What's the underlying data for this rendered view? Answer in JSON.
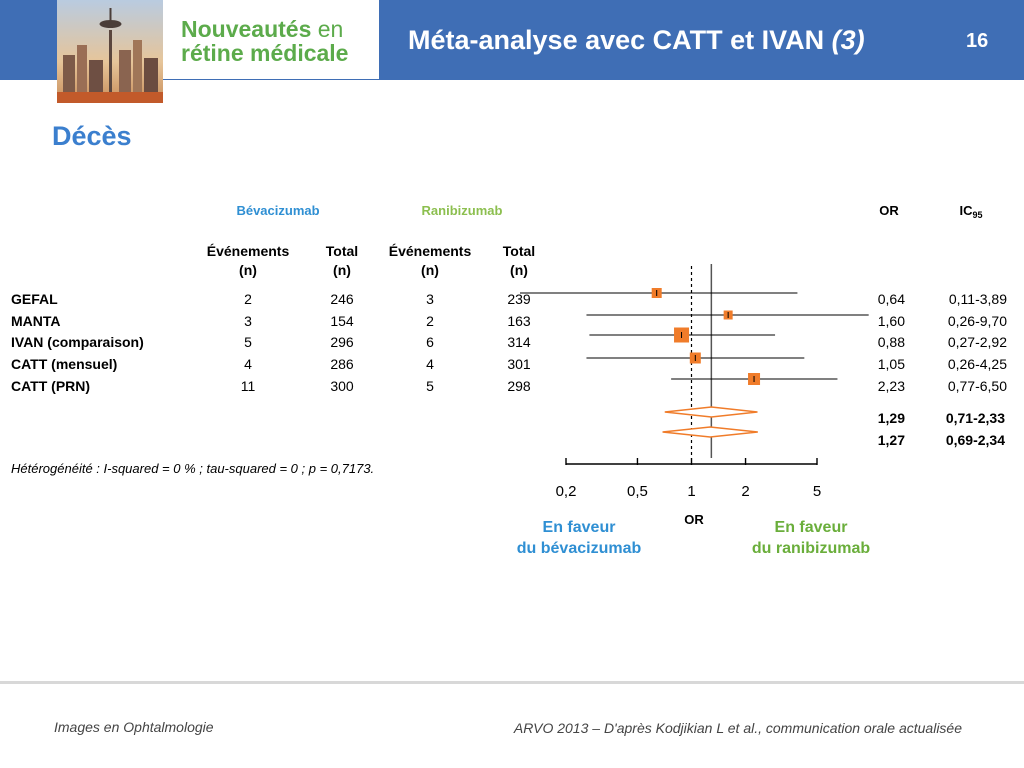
{
  "header": {
    "brand_line1": "Nouveautés",
    "brand_line1_suffix": "en",
    "brand_line2": "rétine médicale",
    "title": "Méta-analyse avec CATT et IVAN ",
    "title_italic": "(3)",
    "slide_number": "16"
  },
  "section_title": "Décès",
  "table": {
    "group_bev": "Bévacizumab",
    "group_ran": "Ranibizumab",
    "col_or": "OR",
    "col_ic": "IC",
    "col_ic_sub": "95",
    "col_events": "Événements",
    "col_total": "Total",
    "col_n": "(n)",
    "rows": [
      {
        "study": "GEFAL",
        "bev_events": "2",
        "bev_total": "246",
        "ran_events": "3",
        "ran_total": "239",
        "or": "0,64",
        "ic": "0,11-3,89"
      },
      {
        "study": "MANTA",
        "bev_events": "3",
        "bev_total": "154",
        "ran_events": "2",
        "ran_total": "163",
        "or": "1,60",
        "ic": "0,26-9,70"
      },
      {
        "study": "IVAN (comparaison)",
        "bev_events": "5",
        "bev_total": "296",
        "ran_events": "6",
        "ran_total": "314",
        "or": "0,88",
        "ic": "0,27-2,92"
      },
      {
        "study": "CATT (mensuel)",
        "bev_events": "4",
        "bev_total": "286",
        "ran_events": "4",
        "ran_total": "301",
        "or": "1,05",
        "ic": "0,26-4,25"
      },
      {
        "study": "CATT (PRN)",
        "bev_events": "11",
        "bev_total": "300",
        "ran_events": "5",
        "ran_total": "298",
        "or": "2,23",
        "ic": "0,77-6,50"
      }
    ],
    "pooled": [
      {
        "or": "1,29",
        "ic": "0,71-2,33"
      },
      {
        "or": "1,27",
        "ic": "0,69-2,34"
      }
    ],
    "heterogeneity": "Hétérogénéité : I-squared = 0 % ; tau-squared = 0 ; p = 0,7173."
  },
  "chart_data": {
    "type": "forest",
    "x_scale": "log",
    "xlabel": "OR",
    "xlim": [
      0.2,
      5
    ],
    "ticks": [
      {
        "value": 0.2,
        "label": "0,2"
      },
      {
        "value": 0.5,
        "label": "0,5"
      },
      {
        "value": 1,
        "label": "1"
      },
      {
        "value": 2,
        "label": "2"
      },
      {
        "value": 5,
        "label": "5"
      }
    ],
    "reference_line": 1,
    "pooled_reference_line": 1.29,
    "studies": [
      {
        "study": "GEFAL",
        "or": 0.64,
        "lo": 0.11,
        "hi": 3.89
      },
      {
        "study": "MANTA",
        "or": 1.6,
        "lo": 0.26,
        "hi": 9.7
      },
      {
        "study": "IVAN (comparaison)",
        "or": 0.88,
        "lo": 0.27,
        "hi": 2.92
      },
      {
        "study": "CATT (mensuel)",
        "or": 1.05,
        "lo": 0.26,
        "hi": 4.25
      },
      {
        "study": "CATT (PRN)",
        "or": 2.23,
        "lo": 0.77,
        "hi": 6.5
      }
    ],
    "pooled": [
      {
        "or": 1.29,
        "lo": 0.71,
        "hi": 2.33
      },
      {
        "or": 1.27,
        "lo": 0.69,
        "hi": 2.34
      }
    ],
    "favours_left": [
      "En faveur",
      "du bévacizumab"
    ],
    "favours_right": [
      "En faveur",
      "du ranibizumab"
    ],
    "colors": {
      "marker": "#f07c2a",
      "diamond": "#f07c2a",
      "axis": "#000000"
    }
  },
  "footer": {
    "left": "Images en Ophtalmologie",
    "right": "ARVO 2013 – D'après Kodjikian L et al., communication orale actualisée"
  }
}
